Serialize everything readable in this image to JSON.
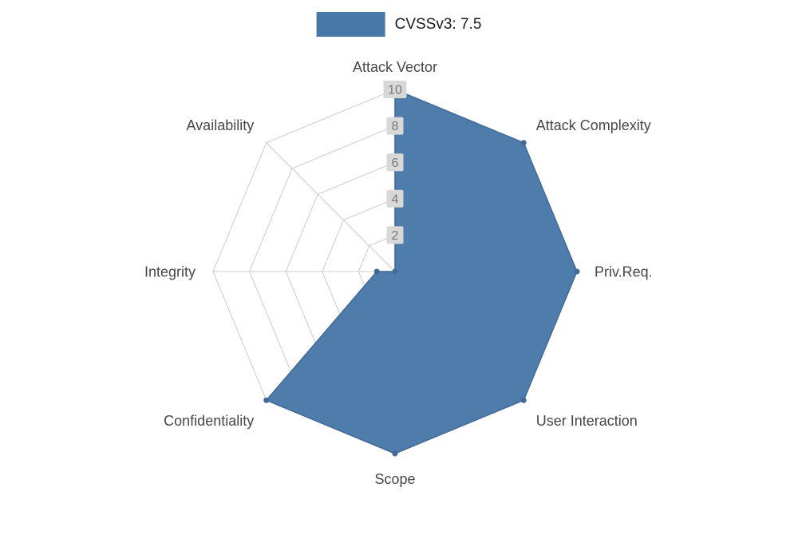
{
  "legend": {
    "label": "CVSSv3: 7.5",
    "swatch_color": "#4878a8"
  },
  "chart_data": {
    "type": "radar",
    "title": "",
    "categories": [
      "Attack Vector",
      "Attack Complexity",
      "Priv.Req.",
      "User Interaction",
      "Scope",
      "Confidentiality",
      "Integrity",
      "Availability"
    ],
    "series": [
      {
        "name": "CVSSv3: 7.5",
        "values": [
          10,
          10,
          10,
          10,
          10,
          10,
          1,
          0
        ]
      }
    ],
    "ylim": [
      0,
      10
    ],
    "ticks": [
      2,
      4,
      6,
      8,
      10
    ],
    "grid": true,
    "legend_position": "top",
    "colors": {
      "fill": "#4878a8",
      "stroke": "#41699b",
      "grid": "#cccccc",
      "axis_label": "#474747",
      "tick_label": "#777777",
      "tick_bg": "#d8d8d8"
    }
  }
}
